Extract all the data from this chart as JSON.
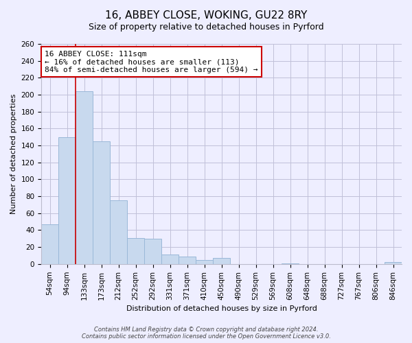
{
  "title": "16, ABBEY CLOSE, WOKING, GU22 8RY",
  "subtitle": "Size of property relative to detached houses in Pyrford",
  "xlabel": "Distribution of detached houses by size in Pyrford",
  "ylabel": "Number of detached properties",
  "categories": [
    "54sqm",
    "94sqm",
    "133sqm",
    "173sqm",
    "212sqm",
    "252sqm",
    "292sqm",
    "331sqm",
    "371sqm",
    "410sqm",
    "450sqm",
    "490sqm",
    "529sqm",
    "569sqm",
    "608sqm",
    "648sqm",
    "688sqm",
    "727sqm",
    "767sqm",
    "806sqm",
    "846sqm"
  ],
  "values": [
    47,
    150,
    204,
    145,
    75,
    31,
    30,
    11,
    9,
    5,
    7,
    0,
    0,
    0,
    1,
    0,
    0,
    0,
    0,
    0,
    2
  ],
  "bar_color": "#c8d9ee",
  "bar_edge_color": "#9ab8d8",
  "vline_x_index": 1.5,
  "vline_color": "#cc0000",
  "annotation_text": "16 ABBEY CLOSE: 111sqm\n← 16% of detached houses are smaller (113)\n84% of semi-detached houses are larger (594) →",
  "annotation_box_color": "white",
  "annotation_box_edge": "#cc0000",
  "ylim": [
    0,
    260
  ],
  "yticks": [
    0,
    20,
    40,
    60,
    80,
    100,
    120,
    140,
    160,
    180,
    200,
    220,
    240,
    260
  ],
  "footer1": "Contains HM Land Registry data © Crown copyright and database right 2024.",
  "footer2": "Contains public sector information licensed under the Open Government Licence v3.0.",
  "bg_color": "#eeeeff",
  "grid_color": "#c0c0d8",
  "title_fontsize": 11,
  "subtitle_fontsize": 9,
  "xlabel_fontsize": 8,
  "ylabel_fontsize": 8,
  "tick_fontsize": 7.5,
  "annotation_fontsize": 8,
  "footer_fontsize": 6
}
